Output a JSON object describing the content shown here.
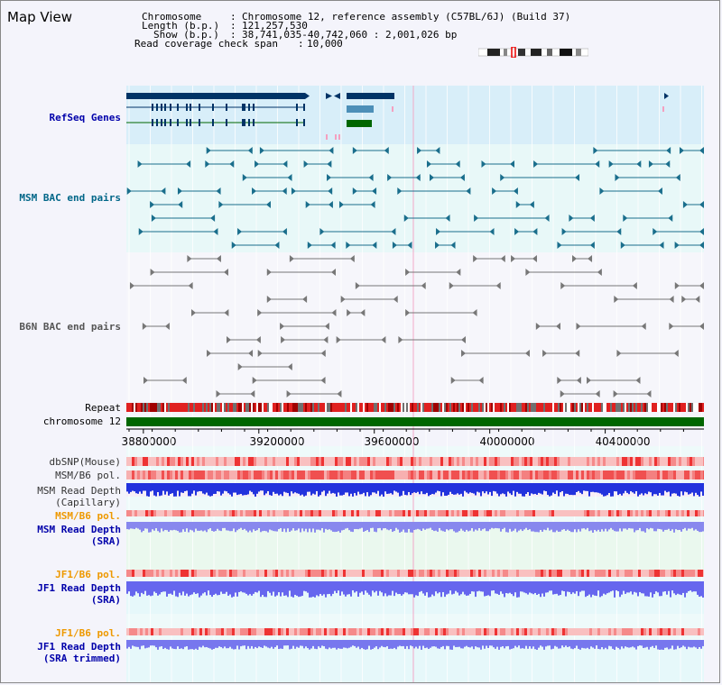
{
  "page": {
    "title": "Map View"
  },
  "info": {
    "chromosome_label": "Chromosome",
    "chromosome_value": "Chromosome 12, reference assembly (C57BL/6J) (Build 37)",
    "length_label": "Length (b.p.)",
    "length_value": "121,257,530",
    "show_label": "Show (b.p.)",
    "show_value": "38,741,035-40,742,060 : 2,001,026 bp",
    "coverage_label": "Read coverage check span",
    "coverage_value": "10,000"
  },
  "tracks": {
    "refseq": "RefSeq Genes",
    "msm_bac": "MSM BAC end pairs",
    "b6n_bac": "B6N BAC end pairs",
    "repeat": "Repeat",
    "chromosome": "chromosome 12",
    "dbsnp": "dbSNP(Mouse)",
    "msm_b6_pol": "MSM/B6 pol.",
    "msm_depth_cap_1": "MSM Read Depth",
    "msm_depth_cap_2": "(Capillary)",
    "msm_b6_pol_2": "MSM/B6 pol.",
    "msm_depth_sra_1": "MSM Read Depth",
    "msm_depth_sra_2": "(SRA)",
    "jf1_b6_pol": "JF1/B6 pol.",
    "jf1_depth_sra_1": "JF1 Read Depth",
    "jf1_depth_sra_2": "(SRA)",
    "jf1_b6_pol_2": "JF1/B6 pol.",
    "jf1_depth_trim_1": "JF1 Read Depth",
    "jf1_depth_trim_2": "(SRA trimmed)"
  },
  "axis": {
    "ticks": [
      "38800000",
      "39200000",
      "39600000",
      "40000000",
      "40400000"
    ],
    "tick_values": [
      38800000,
      39200000,
      39600000,
      40000000,
      40400000
    ],
    "range": [
      38741035,
      40742060
    ]
  },
  "colors": {
    "refseq_bg": "#d8eef9",
    "msm_bg": "#e8f8f8",
    "gene_dark": "#003366",
    "gene_mid": "#4d8fb8",
    "gene_green": "#006600",
    "msm_line": "#1a6e8c",
    "b6n_line": "#777777",
    "chromosome_bar": "#006600",
    "depth_blue": "#2233dd",
    "depth_lavender": "#8888ee",
    "pol_red": "#ee3333"
  },
  "icons": {
    "ideogram": "chromosome-ideogram-icon"
  }
}
